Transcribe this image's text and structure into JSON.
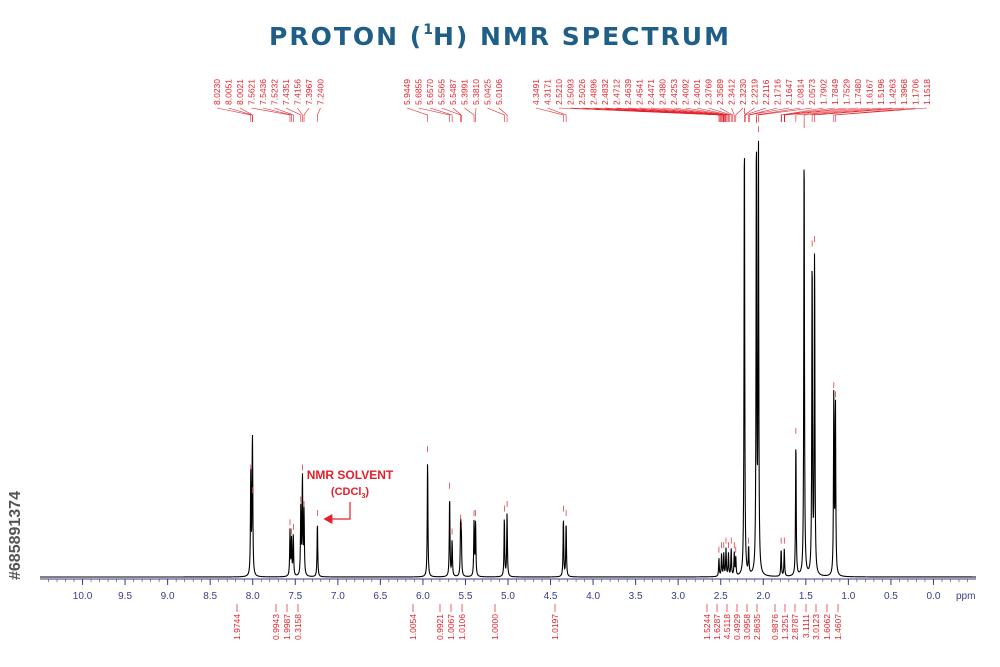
{
  "title_prefix": "PROTON (",
  "title_sup": "1",
  "title_suffix": "H) NMR SPECTRUM",
  "side_id": "#685891374",
  "colors": {
    "title": "#1f5f87",
    "annotation": "#e2202a",
    "trace": "#000000",
    "axis": "#3a3a8a"
  },
  "chart_data": {
    "type": "line",
    "title": "PROTON (1H) NMR SPECTRUM",
    "xlabel": "ppm",
    "xlim": [
      10.5,
      -0.5
    ],
    "x_reversed": true,
    "xticks": [
      "10.0",
      "9.5",
      "9.0",
      "8.5",
      "8.0",
      "7.5",
      "7.0",
      "6.5",
      "6.0",
      "5.5",
      "5.0",
      "4.5",
      "4.0",
      "3.5",
      "3.0",
      "2.5",
      "2.0",
      "1.5",
      "1.0",
      "0.5",
      "0.0"
    ],
    "xtick_values": [
      10.0,
      9.5,
      9.0,
      8.5,
      8.0,
      7.5,
      7.0,
      6.5,
      6.0,
      5.5,
      5.0,
      4.5,
      4.0,
      3.5,
      3.0,
      2.5,
      2.0,
      1.5,
      1.0,
      0.5,
      0.0
    ],
    "grid": false,
    "annotation": {
      "line1": "NMR SOLVENT",
      "line2_prefix": "(CDCl",
      "line2_sub": "3",
      "line2_suffix": ")",
      "points_to_ppm": 7.24
    },
    "peak_label_groups": [
      {
        "labels": [
          "8.0230",
          "8.0051",
          "8.0021",
          "7.5621",
          "7.5436",
          "7.5232",
          "7.4351",
          "7.4156",
          "7.3967",
          "7.2400"
        ],
        "ppms": [
          8.023,
          8.005,
          8.002,
          7.562,
          7.544,
          7.523,
          7.435,
          7.416,
          7.397,
          7.24
        ]
      },
      {
        "labels": [
          "5.9449",
          "5.6855",
          "5.6570",
          "5.5565",
          "5.5487",
          "5.3991",
          "5.3810",
          "5.0425",
          "5.0106"
        ],
        "ppms": [
          5.945,
          5.686,
          5.657,
          5.557,
          5.549,
          5.399,
          5.381,
          5.043,
          5.011
        ]
      },
      {
        "labels": [
          "4.3491",
          "4.3171",
          "2.5210",
          "2.5093",
          "2.5026",
          "2.4896",
          "2.4832",
          "2.4712",
          "2.4639",
          "2.4541",
          "2.4471",
          "2.4380",
          "2.4253",
          "2.4092",
          "2.4001",
          "2.3769",
          "2.3589",
          "2.3412",
          "2.3230",
          "2.2219",
          "2.2116",
          "2.1716",
          "2.1647",
          "2.0814",
          "2.0573",
          "1.7902",
          "1.7849",
          "1.7529",
          "1.7480",
          "1.6167",
          "1.5196",
          "1.4263",
          "1.3968",
          "1.1706",
          "1.1518"
        ],
        "ppms": [
          4.349,
          4.317,
          2.521,
          2.509,
          2.503,
          2.49,
          2.483,
          2.471,
          2.464,
          2.454,
          2.447,
          2.438,
          2.425,
          2.409,
          2.4,
          2.377,
          2.359,
          2.341,
          2.323,
          2.222,
          2.212,
          2.172,
          2.165,
          2.081,
          2.057,
          1.79,
          1.785,
          1.753,
          1.748,
          1.617,
          1.52,
          1.426,
          1.397,
          1.171,
          1.152
        ]
      }
    ],
    "integrals": [
      {
        "value": "1.9744",
        "ppm": 8.01
      },
      {
        "value": "0.9943",
        "ppm": 7.55
      },
      {
        "value": "1.9987",
        "ppm": 7.42
      },
      {
        "value": "0.3158",
        "ppm": 7.24
      },
      {
        "value": "1.0054",
        "ppm": 5.95
      },
      {
        "value": "0.9921",
        "ppm": 5.67
      },
      {
        "value": "1.0067",
        "ppm": 5.55
      },
      {
        "value": "1.0106",
        "ppm": 5.39
      },
      {
        "value": "1.0000",
        "ppm": 5.03
      },
      {
        "value": "1.0197",
        "ppm": 4.33
      },
      {
        "value": "1.5244",
        "ppm": 2.5
      },
      {
        "value": "1.6287",
        "ppm": 2.44
      },
      {
        "value": "4.5118",
        "ppm": 2.38
      },
      {
        "value": "0.4929",
        "ppm": 2.32
      },
      {
        "value": "3.0958",
        "ppm": 2.21
      },
      {
        "value": "2.8635",
        "ppm": 2.07
      },
      {
        "value": "0.9876",
        "ppm": 1.77
      },
      {
        "value": "1.3251",
        "ppm": 1.62
      },
      {
        "value": "2.8787",
        "ppm": 1.52
      },
      {
        "value": "3.1111",
        "ppm": 1.43
      },
      {
        "value": "3.0123",
        "ppm": 1.4
      },
      {
        "value": "1.6062",
        "ppm": 1.17
      },
      {
        "value": "1.4607",
        "ppm": 1.15
      }
    ],
    "peaks": [
      {
        "ppm": 8.023,
        "height": 0.22
      },
      {
        "ppm": 8.005,
        "height": 0.17
      },
      {
        "ppm": 8.002,
        "height": 0.17
      },
      {
        "ppm": 7.562,
        "height": 0.1
      },
      {
        "ppm": 7.544,
        "height": 0.08
      },
      {
        "ppm": 7.523,
        "height": 0.09
      },
      {
        "ppm": 7.435,
        "height": 0.15
      },
      {
        "ppm": 7.416,
        "height": 0.22
      },
      {
        "ppm": 7.397,
        "height": 0.14
      },
      {
        "ppm": 7.24,
        "height": 0.12
      },
      {
        "ppm": 5.945,
        "height": 0.26
      },
      {
        "ppm": 5.686,
        "height": 0.18
      },
      {
        "ppm": 5.657,
        "height": 0.08
      },
      {
        "ppm": 5.557,
        "height": 0.11
      },
      {
        "ppm": 5.549,
        "height": 0.09
      },
      {
        "ppm": 5.399,
        "height": 0.12
      },
      {
        "ppm": 5.381,
        "height": 0.12
      },
      {
        "ppm": 5.043,
        "height": 0.13
      },
      {
        "ppm": 5.011,
        "height": 0.14
      },
      {
        "ppm": 4.349,
        "height": 0.13
      },
      {
        "ppm": 4.317,
        "height": 0.12
      },
      {
        "ppm": 2.521,
        "height": 0.04
      },
      {
        "ppm": 2.49,
        "height": 0.05
      },
      {
        "ppm": 2.464,
        "height": 0.05
      },
      {
        "ppm": 2.438,
        "height": 0.06
      },
      {
        "ppm": 2.409,
        "height": 0.05
      },
      {
        "ppm": 2.377,
        "height": 0.06
      },
      {
        "ppm": 2.341,
        "height": 0.05
      },
      {
        "ppm": 2.323,
        "height": 0.04
      },
      {
        "ppm": 2.222,
        "height": 1.0
      },
      {
        "ppm": 2.172,
        "height": 0.06
      },
      {
        "ppm": 2.081,
        "height": 0.98
      },
      {
        "ppm": 2.057,
        "height": 0.96
      },
      {
        "ppm": 1.79,
        "height": 0.06
      },
      {
        "ppm": 1.753,
        "height": 0.06
      },
      {
        "ppm": 1.617,
        "height": 0.3
      },
      {
        "ppm": 1.52,
        "height": 0.97
      },
      {
        "ppm": 1.426,
        "height": 0.71
      },
      {
        "ppm": 1.397,
        "height": 0.72
      },
      {
        "ppm": 1.171,
        "height": 0.4
      },
      {
        "ppm": 1.152,
        "height": 0.38
      }
    ]
  }
}
